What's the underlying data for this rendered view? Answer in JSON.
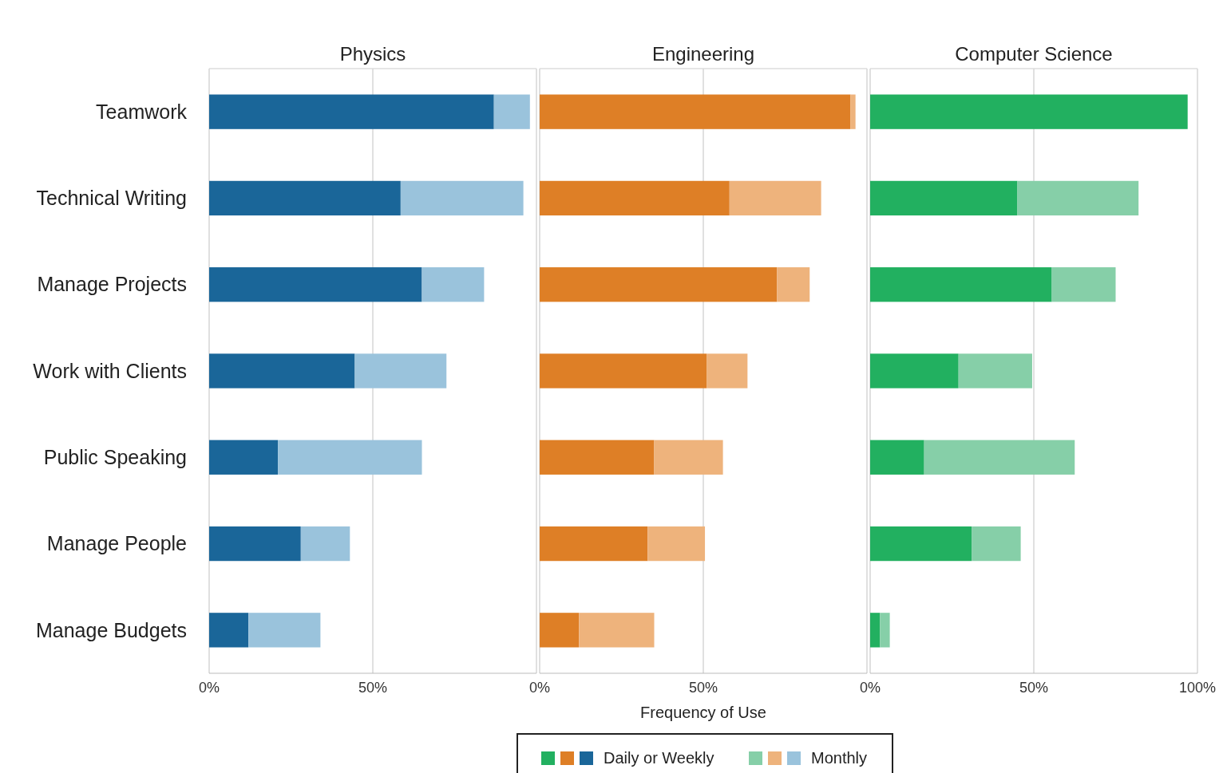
{
  "chart_data": [
    {
      "type": "bar",
      "orientation": "horizontal",
      "stacked": true,
      "title": "Physics",
      "categories": [
        "Teamwork",
        "Technical Writing",
        "Manage Projects",
        "Work with Clients",
        "Public Speaking",
        "Manage People",
        "Manage Budgets"
      ],
      "series": [
        {
          "name": "Daily or Weekly",
          "color": "#1a6699",
          "values": [
            87,
            58.5,
            65,
            44.5,
            21,
            28,
            12
          ]
        },
        {
          "name": "Monthly",
          "color": "#9ac3dc",
          "values": [
            11,
            37.5,
            19,
            28,
            44,
            15,
            22
          ]
        }
      ],
      "xlim": [
        0,
        100
      ],
      "xticks": [
        {
          "value": 0,
          "label": "0%"
        },
        {
          "value": 50,
          "label": "50%"
        },
        {
          "value": 100,
          "label": null
        }
      ],
      "grid": "x",
      "legend": "bottom"
    },
    {
      "type": "bar",
      "orientation": "horizontal",
      "stacked": true,
      "title": "Engineering",
      "xlabel": "Frequency of Use",
      "categories": [
        null,
        null,
        null,
        null,
        null,
        null,
        null
      ],
      "tick_labels": "x",
      "series": [
        {
          "color": "#de7f26",
          "values": [
            95,
            58,
            72.5,
            51,
            35,
            33,
            12
          ]
        },
        {
          "color": "#eeb37c",
          "values": [
            1.5,
            28,
            10,
            12.5,
            21,
            17.5,
            23
          ]
        }
      ],
      "xlim": [
        0,
        100
      ],
      "xticks": [
        {
          "value": 0,
          "label": "0%"
        },
        {
          "value": 50,
          "label": "50%"
        },
        {
          "value": 100,
          "label": null
        }
      ],
      "grid": "x"
    },
    {
      "type": "bar",
      "orientation": "horizontal",
      "stacked": true,
      "title": "Computer Science",
      "categories": [
        null,
        null,
        null,
        null,
        null,
        null,
        null
      ],
      "tick_labels": "x",
      "series": [
        {
          "color": "#22b060",
          "values": [
            97,
            45,
            55.5,
            27,
            16.5,
            31,
            3
          ]
        },
        {
          "color": "#86cfa8",
          "values": [
            0,
            37,
            19.5,
            22.5,
            46,
            15,
            3
          ]
        }
      ],
      "xlim": [
        0,
        100
      ],
      "xticks": [
        {
          "value": 0,
          "label": "0%"
        },
        {
          "value": 50,
          "label": "50%"
        },
        {
          "value": 100,
          "label": "100%"
        }
      ],
      "grid": "x"
    }
  ]
}
